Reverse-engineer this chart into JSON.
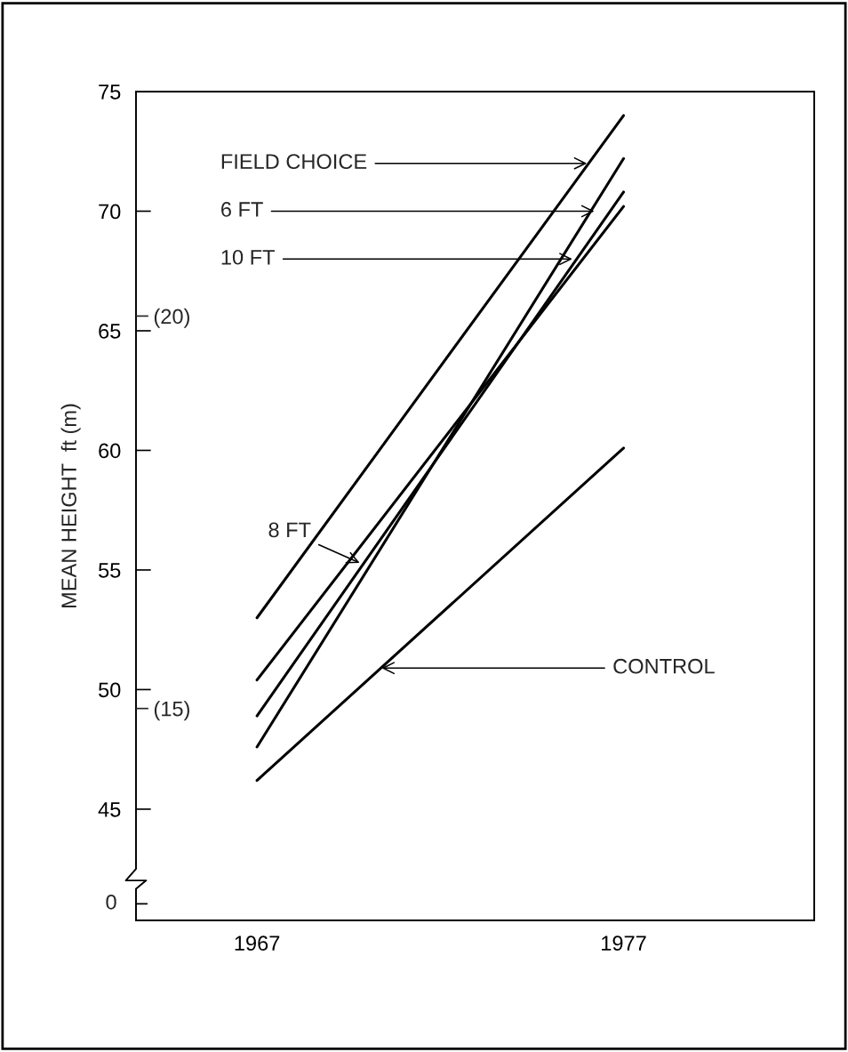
{
  "chart_data": {
    "type": "line",
    "ylabel": "MEAN HEIGHT  ft (m)",
    "x": [
      1967,
      1977
    ],
    "xlim": [
      1963.7,
      1982.2
    ],
    "xticks": [
      1967,
      1977
    ],
    "ylim": [
      40.35,
      75
    ],
    "yticks": [
      45,
      50,
      55,
      60,
      65,
      70,
      75
    ],
    "y2lim": [
      12.3,
      22.86
    ],
    "y2ticks": [
      {
        "value": 15,
        "label": "(15)"
      },
      {
        "value": 20,
        "label": "(20)"
      }
    ],
    "marker": "none",
    "line_style": "solid",
    "series": [
      {
        "color": "#000000",
        "values": [
          53.0,
          74.0
        ]
      },
      {
        "color": "#000000",
        "values": [
          50.4,
          70.2
        ]
      },
      {
        "color": "#000000",
        "values": [
          48.9,
          70.8
        ]
      },
      {
        "color": "#000000",
        "values": [
          47.6,
          72.2
        ]
      },
      {
        "color": "#000000",
        "values": [
          46.2,
          60.1
        ]
      }
    ],
    "annotations": [
      {
        "text": "FIELD CHOICE",
        "x": 1976.0,
        "y": 72.0
      },
      {
        "text": "6 FT",
        "x": 1976.2,
        "y": 70.0
      },
      {
        "text": "10 FT",
        "x": 1975.6,
        "y": 68.0
      },
      {
        "text": "8 FT",
        "x": 1969.8,
        "y": 55.3
      },
      {
        "text": "CONTROL",
        "x": 1970.4,
        "y": 50.9
      },
      "0"
    ]
  }
}
